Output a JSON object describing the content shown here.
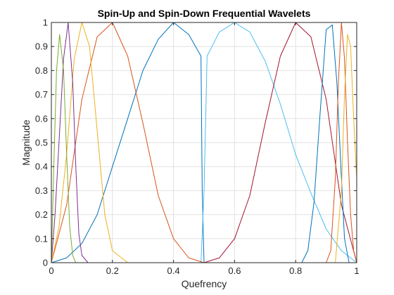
{
  "chart_data": {
    "type": "line",
    "title": "Spin-Up and Spin-Down Frequential Wavelets",
    "xlabel": "Quefrency",
    "ylabel": "Magnitude",
    "xlim": [
      0,
      1
    ],
    "ylim": [
      0,
      1
    ],
    "grid": true,
    "xticks": [
      0,
      0.2,
      0.4,
      0.6,
      0.8,
      1
    ],
    "xtick_labels": [
      "0",
      "0.2",
      "0.4",
      "0.6",
      "0.8",
      "1"
    ],
    "yticks": [
      0,
      0.1,
      0.2,
      0.3,
      0.4,
      0.5,
      0.6,
      0.7,
      0.8,
      0.9,
      1
    ],
    "ytick_labels": [
      "0",
      "0.1",
      "0.2",
      "0.3",
      "0.4",
      "0.5",
      "0.6",
      "0.7",
      "0.8",
      "0.9",
      "1"
    ],
    "series": [
      {
        "color": "#0072BD",
        "x": [
          0,
          0.05,
          0.1,
          0.15,
          0.2,
          0.25,
          0.3,
          0.35,
          0.4,
          0.45,
          0.49,
          0.494,
          0.5
        ],
        "y": [
          0,
          0.02,
          0.08,
          0.2,
          0.4,
          0.6,
          0.8,
          0.93,
          1.0,
          0.95,
          0.86,
          0.3,
          0
        ]
      },
      {
        "color": "#4DBEEE",
        "x": [
          0.49,
          0.5,
          0.51,
          0.55,
          0.6,
          0.65,
          0.7,
          0.75,
          0.8,
          0.85,
          0.9,
          0.95,
          1.0
        ],
        "y": [
          0,
          0.3,
          0.86,
          0.96,
          1.0,
          0.96,
          0.84,
          0.66,
          0.45,
          0.29,
          0.14,
          0.05,
          0
        ]
      },
      {
        "color": "#D95319",
        "x": [
          0,
          0.05,
          0.1,
          0.15,
          0.2,
          0.25,
          0.3,
          0.35,
          0.4,
          0.45,
          0.5
        ],
        "y": [
          0,
          0.24,
          0.68,
          0.94,
          1.0,
          0.86,
          0.58,
          0.28,
          0.1,
          0.02,
          0
        ]
      },
      {
        "color": "#A2142F",
        "x": [
          0.5,
          0.55,
          0.6,
          0.65,
          0.7,
          0.75,
          0.8,
          0.85,
          0.9,
          0.95,
          1.0
        ],
        "y": [
          0,
          0.02,
          0.1,
          0.28,
          0.58,
          0.86,
          1.0,
          0.94,
          0.68,
          0.24,
          0
        ]
      },
      {
        "color": "#EDB120",
        "x": [
          0,
          0.025,
          0.05,
          0.075,
          0.1,
          0.125,
          0.15,
          0.175,
          0.2,
          0.25
        ],
        "y": [
          0,
          0.15,
          0.45,
          0.85,
          1.0,
          0.9,
          0.55,
          0.2,
          0.05,
          0
        ]
      },
      {
        "color": "#7E2F8E",
        "x": [
          0,
          0.012,
          0.025,
          0.04,
          0.055,
          0.07,
          0.08,
          0.09,
          0.1,
          0.12
        ],
        "y": [
          0,
          0.2,
          0.5,
          0.85,
          1.0,
          0.75,
          0.4,
          0.12,
          0.03,
          0
        ]
      },
      {
        "color": "#77AC30",
        "x": [
          0,
          0.008,
          0.017,
          0.027,
          0.04,
          0.05,
          0.06,
          0.07,
          0.08
        ],
        "y": [
          0,
          0.4,
          0.8,
          0.95,
          0.8,
          0.45,
          0.15,
          0.03,
          0
        ]
      },
      {
        "color": "#0072BD",
        "x": [
          0.82,
          0.84,
          0.86,
          0.88,
          0.9,
          0.92,
          0.935,
          0.95,
          0.96,
          0.975
        ],
        "y": [
          0,
          0.05,
          0.25,
          0.62,
          0.97,
          0.99,
          0.75,
          0.35,
          0.1,
          0
        ]
      },
      {
        "color": "#D95319",
        "x": [
          0.9,
          0.915,
          0.93,
          0.94,
          0.95,
          0.96,
          0.97,
          0.98,
          0.99,
          1.0
        ],
        "y": [
          0,
          0.05,
          0.35,
          0.75,
          1.0,
          0.85,
          0.5,
          0.2,
          0.05,
          0
        ]
      },
      {
        "color": "#EDB120",
        "x": [
          0.93,
          0.95,
          0.96,
          0.97,
          0.98,
          0.99,
          1.0
        ],
        "y": [
          0,
          0.3,
          0.7,
          0.95,
          0.9,
          0.6,
          0.35
        ]
      }
    ]
  }
}
